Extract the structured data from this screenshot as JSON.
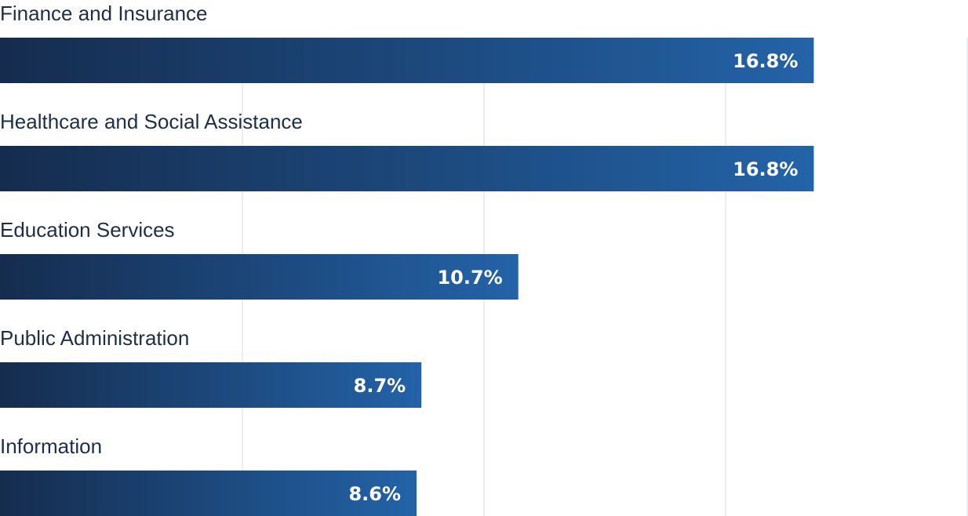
{
  "chart_data": {
    "type": "bar",
    "orientation": "horizontal",
    "categories": [
      "Finance and Insurance",
      "Healthcare and Social Assistance",
      "Education Services",
      "Public Administration",
      "Information"
    ],
    "values": [
      16.8,
      16.8,
      10.7,
      8.7,
      8.6
    ],
    "value_labels": [
      "16.8%",
      "16.8%",
      "10.7%",
      "8.7%",
      "8.6%"
    ],
    "unit": "%",
    "xlim": [
      0,
      20
    ],
    "grid": true,
    "legend": "none",
    "colors": {
      "bar_start": "#152c4e",
      "bar_end": "#2363a8",
      "label_text": "#1c2f4a",
      "value_text": "#ffffff",
      "grid": "#e3e7ee"
    }
  }
}
